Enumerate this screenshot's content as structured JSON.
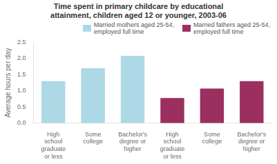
{
  "chart_data": {
    "type": "bar",
    "title": "Time spent in primary childcare by educational\nattainment, children aged 12 or younger, 2003-06",
    "ylabel": "Average hours per day",
    "categories": [
      "High\nschool\ngraduate\nor less",
      "Some\ncollege",
      "Bachelor's\ndegree or\nhigher",
      "High\nschool\ngraduate\nor less",
      "Some\ncollege",
      "Bachelor's\ndegree or\nhigher"
    ],
    "series": [
      {
        "name": "Married mothers aged 25-54,\nemployed full time",
        "color": "#add8e6",
        "values": [
          1.3,
          1.7,
          2.08,
          null,
          null,
          null
        ]
      },
      {
        "name": "Married fathers aged 25-54,\nemployed full time",
        "color": "#9b3060",
        "values": [
          null,
          null,
          null,
          0.78,
          1.07,
          1.3
        ]
      }
    ],
    "ylim": [
      0,
      2.5
    ],
    "yticks": [
      {
        "value": 0,
        "label": "0.0"
      },
      0.5,
      {
        "value": 1,
        "label": "1.0"
      },
      1.5,
      {
        "value": 2,
        "label": "2.0"
      },
      2.5
    ],
    "grid": false,
    "legend": "upper right"
  }
}
